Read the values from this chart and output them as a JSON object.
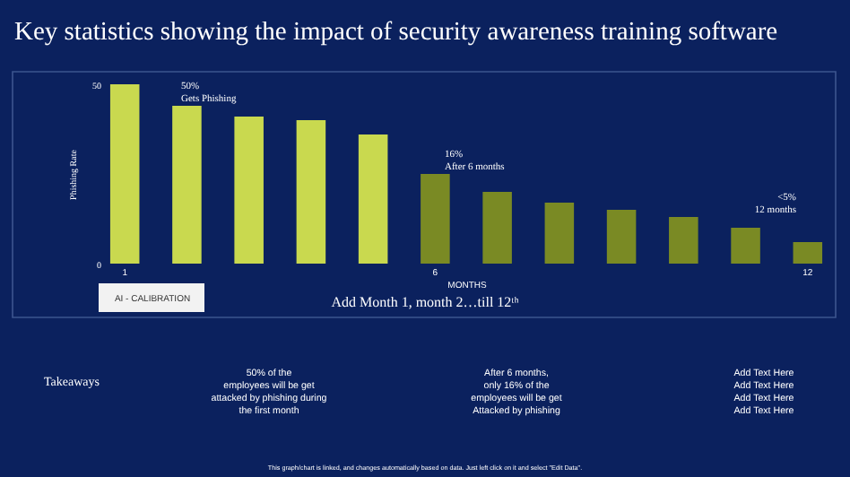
{
  "chart_data": {
    "type": "bar",
    "title": "Key statistics showing the impact of security awareness training software",
    "xlabel": "MONTHS",
    "ylabel": "Phishing Rate",
    "categories": [
      "1",
      null,
      null,
      null,
      null,
      "6",
      null,
      null,
      null,
      null,
      null,
      "12"
    ],
    "values": [
      50,
      44,
      41,
      40,
      36,
      25,
      20,
      17,
      15,
      13,
      10,
      6
    ],
    "colors": [
      "#c9d94f",
      "#c9d94f",
      "#c9d94f",
      "#c9d94f",
      "#c9d94f",
      "#7a8a24",
      "#7a8a24",
      "#7a8a24",
      "#7a8a24",
      "#7a8a24",
      "#7a8a24",
      "#7a8a24"
    ],
    "ylim": [
      0,
      50
    ],
    "yticks": [
      0,
      50
    ],
    "annotations": [
      "50%\nGets Phishing",
      "16%\nAfter  6 months",
      "<5%\n12 months",
      "Add Month 1, month 2…till  12ᵗʰ",
      "AI - CALIBRATION",
      "Takeaways",
      "50% of the\nemployees will be get\nattacked by phishing during\nthe first month",
      "After 6 months,\nonly  16% of the\nemployees will be get\nAttacked by phishing",
      "Add Text Here\nAdd Text Here\nAdd Text Here\nAdd Text Here",
      "This graph/chart is linked, and changes automatically based on data. Just left click on it and select \"Edit Data\"."
    ]
  }
}
